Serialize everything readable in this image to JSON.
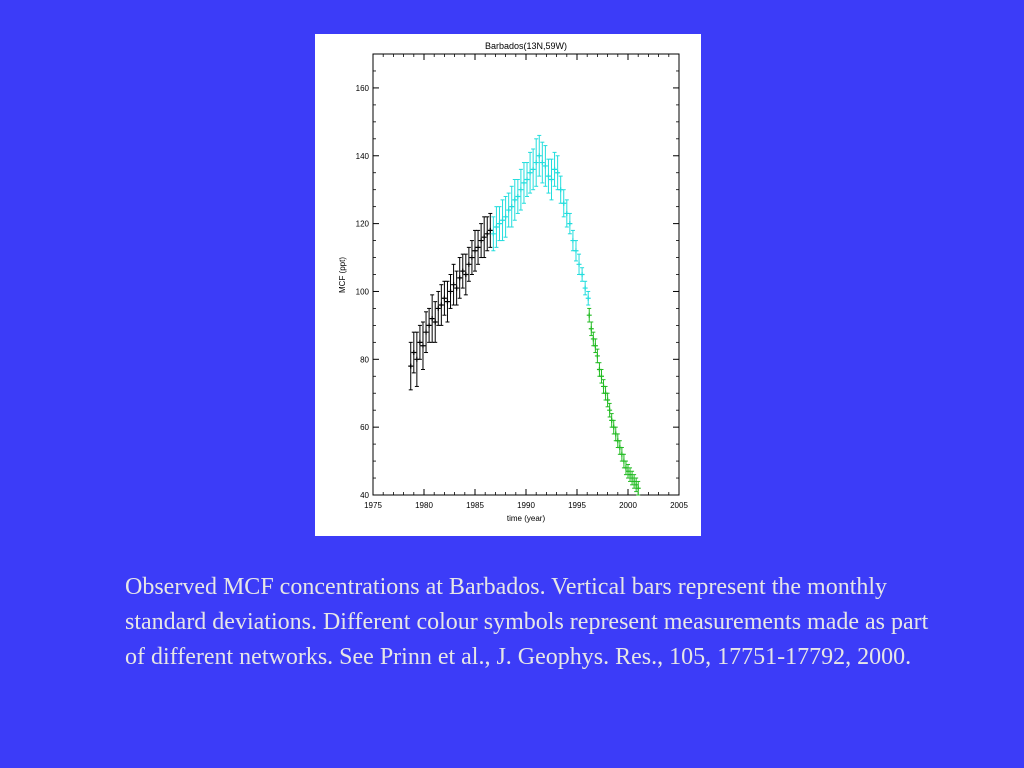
{
  "colors": {
    "background": "#3c3cf8",
    "caption_text": "#e6e6e6",
    "series_ale_gage": "#000000",
    "series_gage": "#22dddd",
    "series_agage": "#22bb22"
  },
  "caption": "Observed MCF concentrations at Barbados.  Vertical bars represent the monthly standard deviations.  Different colour symbols represent measurements made as part of different networks.  See Prinn et al., J. Geophys. Res., 105, 17751-17792, 2000.",
  "chart_data": {
    "type": "scatter",
    "title": "Barbados(13N,59W)",
    "xlabel": "time (year)",
    "ylabel": "MCF (ppt)",
    "xlim": [
      1975,
      2005
    ],
    "ylim": [
      40,
      170
    ],
    "xticks": [
      "1975",
      "1980",
      "1985",
      "1990",
      "1995",
      "2000",
      "2005"
    ],
    "yticks": [
      "40",
      "60",
      "80",
      "100",
      "120",
      "140",
      "160"
    ],
    "legend": "none",
    "grid": false,
    "error_bars": "monthly standard deviation",
    "series": [
      {
        "color": "#000000",
        "x": [
          1978.7,
          1979.0,
          1979.3,
          1979.6,
          1979.9,
          1980.2,
          1980.5,
          1980.8,
          1981.1,
          1981.4,
          1981.7,
          1982.0,
          1982.3,
          1982.6,
          1982.9,
          1983.2,
          1983.5,
          1983.8,
          1984.1,
          1984.4,
          1984.7,
          1985.0,
          1985.3,
          1985.6,
          1985.9,
          1986.2,
          1986.5
        ],
        "y": [
          78,
          82,
          80,
          85,
          84,
          88,
          90,
          92,
          91,
          95,
          96,
          98,
          97,
          100,
          102,
          101,
          104,
          106,
          105,
          108,
          110,
          112,
          113,
          115,
          116,
          117,
          118
        ],
        "err": [
          7,
          6,
          8,
          5,
          7,
          6,
          5,
          7,
          6,
          5,
          6,
          5,
          6,
          5,
          6,
          5,
          6,
          5,
          6,
          5,
          5,
          6,
          5,
          5,
          6,
          5,
          5
        ]
      },
      {
        "color": "#22dddd",
        "x": [
          1986.8,
          1987.1,
          1987.4,
          1987.7,
          1988.0,
          1988.3,
          1988.6,
          1988.9,
          1989.2,
          1989.5,
          1989.8,
          1990.1,
          1990.4,
          1990.7,
          1991.0,
          1991.3,
          1991.6,
          1991.9,
          1992.2,
          1992.5,
          1992.8,
          1993.1,
          1993.4,
          1993.7,
          1994.0,
          1994.3,
          1994.6,
          1994.9,
          1995.2,
          1995.5,
          1995.8,
          1996.1
        ],
        "y": [
          117,
          119,
          120,
          121,
          122,
          124,
          125,
          127,
          128,
          130,
          132,
          133,
          135,
          136,
          138,
          140,
          138,
          137,
          134,
          133,
          136,
          135,
          130,
          126,
          123,
          120,
          115,
          112,
          108,
          105,
          101,
          98
        ],
        "err": [
          5,
          6,
          5,
          6,
          6,
          5,
          6,
          6,
          5,
          6,
          6,
          5,
          6,
          6,
          7,
          6,
          6,
          6,
          5,
          6,
          5,
          5,
          4,
          4,
          4,
          3,
          3,
          3,
          3,
          2,
          2,
          2
        ]
      },
      {
        "color": "#22bb22",
        "x": [
          1996.2,
          1996.4,
          1996.6,
          1996.8,
          1997.0,
          1997.2,
          1997.4,
          1997.6,
          1997.8,
          1998.0,
          1998.2,
          1998.4,
          1998.6,
          1998.8,
          1999.0,
          1999.2,
          1999.4,
          1999.6,
          1999.8,
          2000.0,
          2000.2,
          2000.4,
          2000.6,
          2000.8,
          2001.0
        ],
        "y": [
          93,
          89,
          86,
          84,
          81,
          77,
          75,
          72,
          70,
          68,
          65,
          62,
          60,
          58,
          56,
          54,
          52,
          50,
          48,
          47,
          46,
          45,
          44,
          43,
          42
        ],
        "err": [
          2,
          2,
          2,
          2,
          2,
          2,
          2,
          2,
          2,
          2,
          2,
          2,
          2,
          2,
          2,
          2,
          2,
          2,
          2,
          2,
          2,
          2,
          2,
          2,
          2
        ]
      }
    ]
  }
}
